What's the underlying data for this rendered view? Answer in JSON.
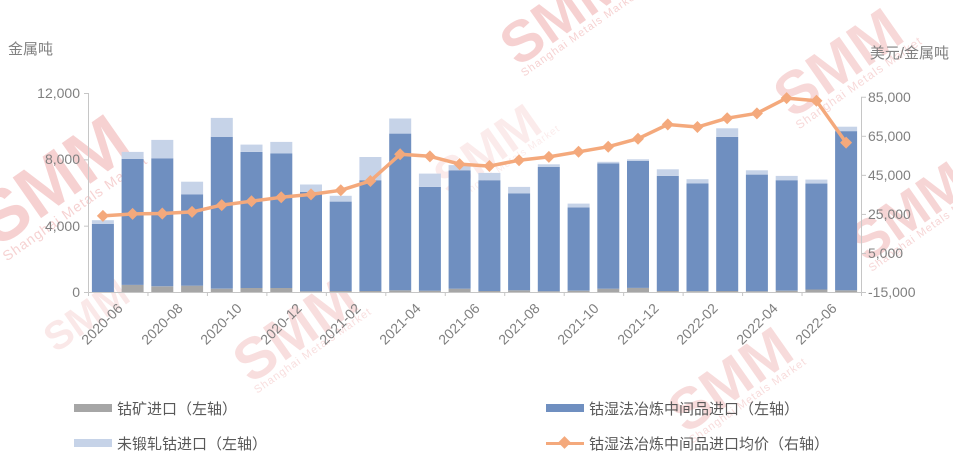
{
  "watermark": {
    "text": "SMM",
    "subtext": "Shanghai Metals Market"
  },
  "colors": {
    "bar_gray": "#a6a6a6",
    "bar_dark_blue": "#6f8fc0",
    "bar_light_blue": "#c6d3e8",
    "line_orange": "#f4a97c",
    "axis_text": "#808080",
    "axis_line": "#c6c6c6",
    "legend_text": "#595959",
    "watermark_red": "#e26b6b"
  },
  "legend": {
    "items": [
      {
        "label": "钴矿进口（左轴）",
        "swatch": "bar",
        "color_key": "bar_gray"
      },
      {
        "label": "未锻轧钴进口（左轴）",
        "swatch": "bar",
        "color_key": "bar_light_blue"
      },
      {
        "label": "钴湿法冶炼中间品进口（左轴）",
        "swatch": "bar",
        "color_key": "bar_dark_blue"
      },
      {
        "label": "钴湿法冶炼中间品进口均价（右轴）",
        "swatch": "line-diamond",
        "color_key": "line_orange"
      }
    ]
  },
  "chart_data": {
    "type": "bar+line",
    "categories": [
      "2020-06",
      "2020-07",
      "2020-08",
      "2020-09",
      "2020-10",
      "2020-11",
      "2020-12",
      "2021-01",
      "2021-02",
      "2021-03",
      "2021-04",
      "2021-05",
      "2021-06",
      "2021-07",
      "2021-08",
      "2021-09",
      "2021-10",
      "2021-11",
      "2021-12",
      "2022-01",
      "2022-02",
      "2022-03",
      "2022-04",
      "2022-05",
      "2022-06",
      "2022-07"
    ],
    "x_tick_labels": [
      "2020-06",
      "2020-08",
      "2020-10",
      "2020-12",
      "2021-02",
      "2021-04",
      "2021-06",
      "2021-08",
      "2021-10",
      "2021-12",
      "2022-02",
      "2022-04",
      "2022-06"
    ],
    "bar_series": [
      {
        "name": "钴矿进口（左轴）",
        "axis": "left",
        "stack_order": 1,
        "color_key": "bar_gray",
        "values": [
          0,
          430,
          340,
          380,
          200,
          240,
          240,
          50,
          60,
          60,
          100,
          80,
          200,
          60,
          100,
          50,
          80,
          200,
          250,
          60,
          50,
          60,
          50,
          80,
          150,
          100
        ]
      },
      {
        "name": "钴湿法冶炼中间品进口（左轴）",
        "axis": "left",
        "stack_order": 2,
        "color_key": "bar_dark_blue",
        "values": [
          4100,
          7590,
          7720,
          5510,
          9150,
          8210,
          8110,
          5980,
          5390,
          6680,
          9450,
          6260,
          7140,
          6680,
          5840,
          7490,
          5020,
          7550,
          7650,
          6940,
          6490,
          9290,
          7030,
          6660,
          6390,
          9600
        ]
      },
      {
        "name": "未锻轧钴进口（左轴）",
        "axis": "left",
        "stack_order": 3,
        "color_key": "bar_light_blue",
        "values": [
          230,
          430,
          1110,
          760,
          1150,
          440,
          700,
          450,
          350,
          1400,
          910,
          800,
          310,
          440,
          400,
          160,
          230,
          100,
          100,
          400,
          260,
          520,
          260,
          260,
          240,
          270
        ]
      }
    ],
    "line_series": [
      {
        "name": "钴湿法冶炼中间品进口均价（右轴）",
        "axis": "right",
        "marker": "diamond",
        "color_key": "line_orange",
        "values": [
          24000,
          25000,
          25200,
          26000,
          29500,
          31500,
          33500,
          35000,
          37100,
          41900,
          55500,
          54500,
          50500,
          49500,
          52500,
          54200,
          56800,
          59400,
          63500,
          70800,
          69500,
          74000,
          76500,
          84300,
          83000,
          61500
        ]
      }
    ],
    "left_axis": {
      "label": "金属吨",
      "range": [
        0,
        12000
      ],
      "ticks": [
        0,
        4000,
        8000,
        12000
      ]
    },
    "right_axis": {
      "label": "美元/金属吨",
      "range": [
        -15000,
        85000
      ],
      "ticks": [
        -15000,
        5000,
        25000,
        45000,
        65000,
        85000
      ]
    },
    "grid": false,
    "legend_position": "bottom"
  }
}
